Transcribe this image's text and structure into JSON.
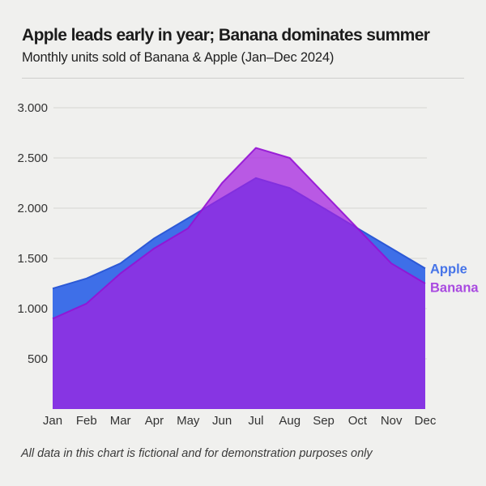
{
  "chart_data": {
    "type": "area",
    "title": "Apple leads early in year; Banana dominates summer",
    "subtitle": "Monthly units sold of Banana & Apple (Jan–Dec 2024)",
    "footnote": "All data in this chart is fictional and for demonstration purposes only",
    "xlabel": "",
    "ylabel": "",
    "categories": [
      "Jan",
      "Feb",
      "Mar",
      "Apr",
      "May",
      "Jun",
      "Jul",
      "Aug",
      "Sep",
      "Oct",
      "Nov",
      "Dec"
    ],
    "series": [
      {
        "name": "Apple",
        "values": [
          1200,
          1300,
          1450,
          1700,
          1900,
          2100,
          2300,
          2200,
          2000,
          1800,
          1600,
          1400
        ],
        "fill_color": "#3E6FE8",
        "edge_color": "#2C59D6",
        "label_color": "#4674E8"
      },
      {
        "name": "Banana",
        "values": [
          900,
          1050,
          1350,
          1600,
          1800,
          2250,
          2600,
          2500,
          2150,
          1800,
          1450,
          1250
        ],
        "fill_color": "rgba(163,30,225,0.72)",
        "edge_color": "rgba(148,18,212,0.9)",
        "label_color": "#A94AE0"
      }
    ],
    "y_ticks": [
      {
        "value": 500,
        "label": "500"
      },
      {
        "value": 1000,
        "label": "1.000"
      },
      {
        "value": 1500,
        "label": "1.500"
      },
      {
        "value": 2000,
        "label": "2.000"
      },
      {
        "value": 2500,
        "label": "2.500"
      },
      {
        "value": 3000,
        "label": "3.000"
      }
    ],
    "ylim": [
      0,
      3000
    ],
    "grid": true,
    "legend_position": "right-of-last-point",
    "colors": {
      "background": "#F0F0EE",
      "gridline": "#DBDBD8",
      "axis_text": "#333333",
      "title_text": "#1C1C1C"
    }
  }
}
